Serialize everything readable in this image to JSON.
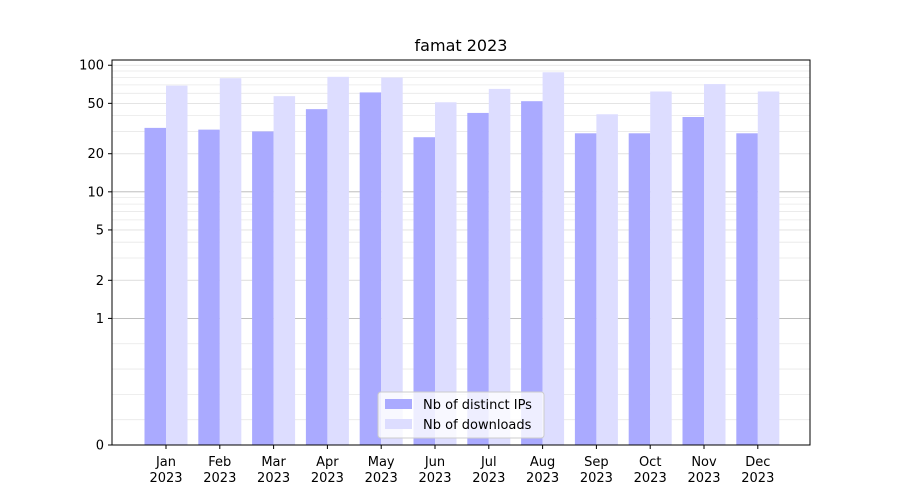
{
  "chart_data": {
    "type": "bar",
    "title": "famat 2023",
    "xlabel": "",
    "ylabel": "",
    "y_scale": "symlog",
    "ylim": [
      0,
      110
    ],
    "y_ticks": [
      0,
      1,
      2,
      5,
      10,
      20,
      50,
      100
    ],
    "y_tick_labels": [
      "0",
      "1",
      "2",
      "5",
      "10",
      "20",
      "50",
      "100"
    ],
    "grid": true,
    "legend_position": "bottom-center",
    "categories": [
      "Jan\n2023",
      "Feb\n2023",
      "Mar\n2023",
      "Apr\n2023",
      "May\n2023",
      "Jun\n2023",
      "Jul\n2023",
      "Aug\n2023",
      "Sep\n2023",
      "Oct\n2023",
      "Nov\n2023",
      "Dec\n2023"
    ],
    "series": [
      {
        "name": "Nb of distinct IPs",
        "color": "#aaaaff",
        "values": [
          32,
          31,
          30,
          45,
          61,
          27,
          42,
          52,
          29,
          29,
          39,
          29
        ]
      },
      {
        "name": "Nb of downloads",
        "color": "#ddddff",
        "values": [
          69,
          79,
          57,
          81,
          80,
          51,
          65,
          88,
          41,
          62,
          71,
          62
        ]
      }
    ]
  }
}
